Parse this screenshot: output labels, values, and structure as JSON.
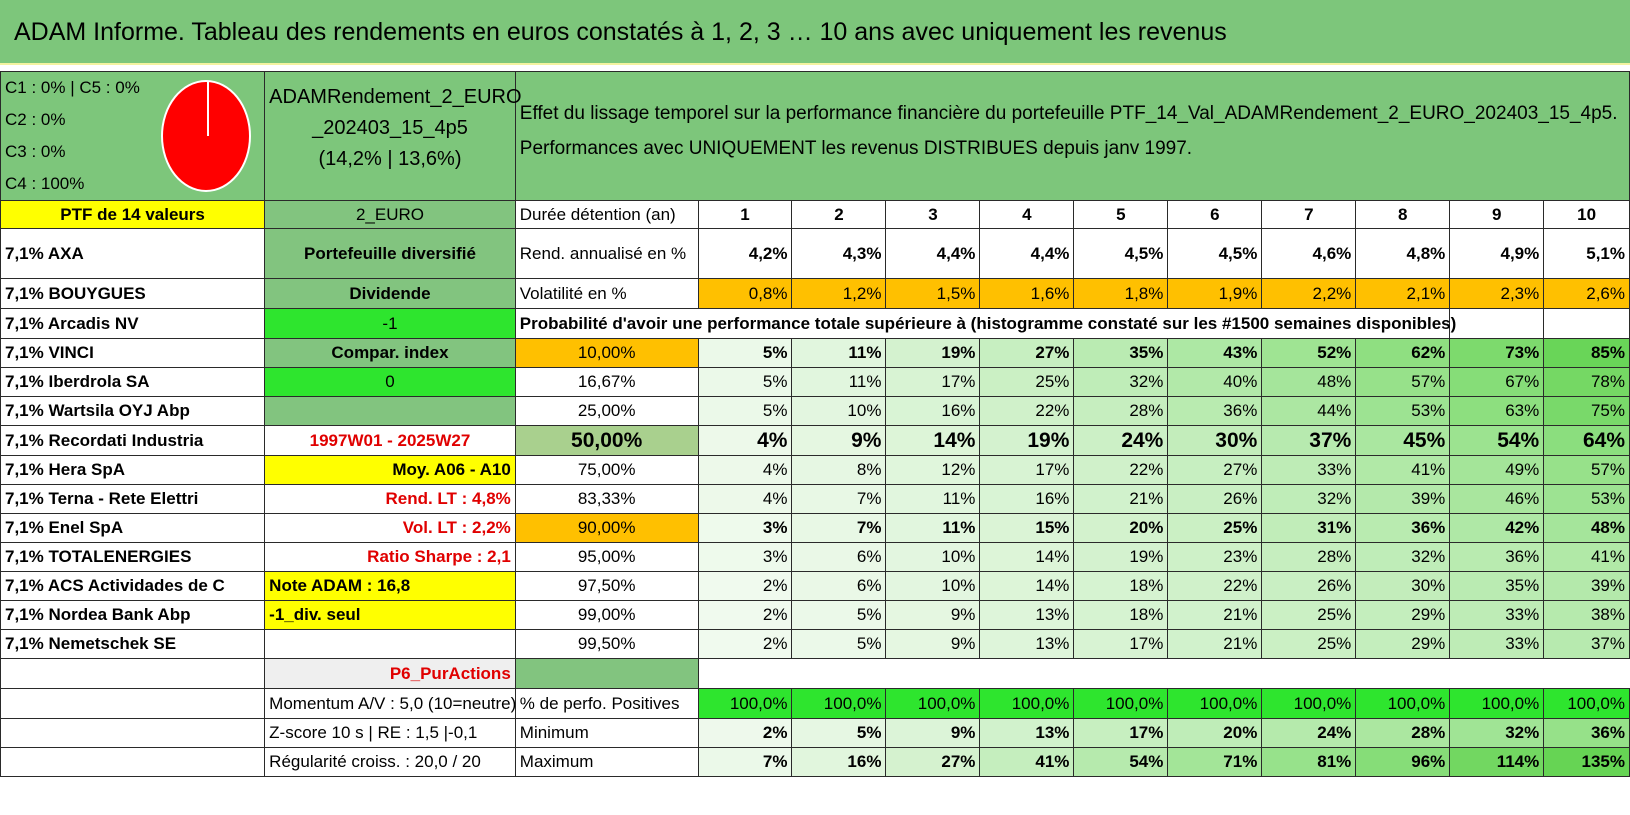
{
  "title": "ADAM Informe. Tableau des rendements en euros constatés à 1, 2, 3 … 10 ans avec uniquement les revenus",
  "shares": [
    "C1 : 0% | C5 : 0%",
    "C2 : 0%",
    "C3 : 0%",
    "C4 : 100%"
  ],
  "portfolio": {
    "name_line1": "ADAMRendement_2_EURO",
    "name_line2": "_202403_15_4p5",
    "name_line3": "(14,2% | 13,6%)",
    "code": "2_EURO",
    "count_label": "PTF de 14 valeurs"
  },
  "description": {
    "line1": "Effet du lissage temporel sur la performance financière du portefeuille PTF_14_Val_ADAMRendement_2_EURO_202403_15_4p5.",
    "line2": "Performances avec UNIQUEMENT les revenus DISTRIBUES depuis janv 1997."
  },
  "years": {
    "label": "Durée détention (an)",
    "values": [
      "1",
      "2",
      "3",
      "4",
      "5",
      "6",
      "7",
      "8",
      "9",
      "10"
    ]
  },
  "rend": {
    "label": "Rend. annualisé en %",
    "values": [
      "4,2%",
      "4,3%",
      "4,4%",
      "4,4%",
      "4,5%",
      "4,5%",
      "4,6%",
      "4,8%",
      "4,9%",
      "5,1%"
    ]
  },
  "vol": {
    "label": "Volatilité en %",
    "values": [
      "0,8%",
      "1,2%",
      "1,5%",
      "1,6%",
      "1,8%",
      "1,9%",
      "2,2%",
      "2,1%",
      "2,3%",
      "2,6%"
    ]
  },
  "prob_header": "Probabilité d'avoir une performance totale supérieure à (histogramme constaté sur les #1500 semaines disponibles)",
  "holdings": [
    "7,1% AXA",
    "7,1% BOUYGUES",
    "7,1% Arcadis NV",
    "7,1% VINCI",
    "7,1% Iberdrola SA",
    "7,1% Wartsila OYJ Abp",
    "7,1% Recordati Industria",
    "7,1% Hera SpA",
    "7,1% Terna - Rete Elettri",
    "7,1% Enel SpA",
    "7,1% TOTALENERGIES",
    "7,1% ACS Actividades de C",
    "7,1% Nordea Bank Abp",
    "7,1% Nemetschek SE"
  ],
  "info": {
    "diversified": "Portefeuille diversifié",
    "dividend": "Dividende",
    "minus_one": "-1",
    "compar_index": "Compar. index",
    "zero": "0",
    "period": "1997W01 - 2025W27",
    "moy": "Moy. A06 - A10",
    "rend_lt": "Rend. LT : 4,8%",
    "vol_lt": "Vol. LT : 2,2%",
    "sharpe": "Ratio Sharpe : 2,1",
    "note": "Note ADAM : 16,8",
    "div_seul": "-1_div. seul",
    "p6": "P6_PurActions"
  },
  "prob_rows": [
    {
      "threshold": "10,00%",
      "values": [
        "5%",
        "11%",
        "19%",
        "27%",
        "35%",
        "43%",
        "52%",
        "62%",
        "73%",
        "85%"
      ]
    },
    {
      "threshold": "16,67%",
      "values": [
        "5%",
        "11%",
        "17%",
        "25%",
        "32%",
        "40%",
        "48%",
        "57%",
        "67%",
        "78%"
      ]
    },
    {
      "threshold": "25,00%",
      "values": [
        "5%",
        "10%",
        "16%",
        "22%",
        "28%",
        "36%",
        "44%",
        "53%",
        "63%",
        "75%"
      ]
    },
    {
      "threshold": "50,00%",
      "values": [
        "4%",
        "9%",
        "14%",
        "19%",
        "24%",
        "30%",
        "37%",
        "45%",
        "54%",
        "64%"
      ]
    },
    {
      "threshold": "75,00%",
      "values": [
        "4%",
        "8%",
        "12%",
        "17%",
        "22%",
        "27%",
        "33%",
        "41%",
        "49%",
        "57%"
      ]
    },
    {
      "threshold": "83,33%",
      "values": [
        "4%",
        "7%",
        "11%",
        "16%",
        "21%",
        "26%",
        "32%",
        "39%",
        "46%",
        "53%"
      ]
    },
    {
      "threshold": "90,00%",
      "values": [
        "3%",
        "7%",
        "11%",
        "15%",
        "20%",
        "25%",
        "31%",
        "36%",
        "42%",
        "48%"
      ]
    },
    {
      "threshold": "95,00%",
      "values": [
        "3%",
        "6%",
        "10%",
        "14%",
        "19%",
        "23%",
        "28%",
        "32%",
        "36%",
        "41%"
      ]
    },
    {
      "threshold": "97,50%",
      "values": [
        "2%",
        "6%",
        "10%",
        "14%",
        "18%",
        "22%",
        "26%",
        "30%",
        "35%",
        "39%"
      ]
    },
    {
      "threshold": "99,00%",
      "values": [
        "2%",
        "5%",
        "9%",
        "13%",
        "18%",
        "21%",
        "25%",
        "29%",
        "33%",
        "38%"
      ]
    },
    {
      "threshold": "99,50%",
      "values": [
        "2%",
        "5%",
        "9%",
        "13%",
        "17%",
        "21%",
        "25%",
        "29%",
        "33%",
        "37%"
      ]
    }
  ],
  "stats": {
    "momentum": "Momentum A/V : 5,0 (10=neutre)",
    "zscore": "Z-score 10 s | RE : 1,5 |-0,1",
    "regularite": "Régularité croiss. : 20,0 / 20",
    "positives": {
      "label": "% de perfo. Positives",
      "values": [
        "100,0%",
        "100,0%",
        "100,0%",
        "100,0%",
        "100,0%",
        "100,0%",
        "100,0%",
        "100,0%",
        "100,0%",
        "100,0%"
      ]
    },
    "minimum": {
      "label": "Minimum",
      "values": [
        "2%",
        "5%",
        "9%",
        "13%",
        "17%",
        "20%",
        "24%",
        "28%",
        "32%",
        "36%"
      ]
    },
    "maximum": {
      "label": "Maximum",
      "values": [
        "7%",
        "16%",
        "27%",
        "41%",
        "54%",
        "71%",
        "81%",
        "96%",
        "114%",
        "135%"
      ]
    }
  },
  "colors": {
    "header_green": "#7dc67b",
    "bright_green": "#2ee52e",
    "yellow": "#ffff00",
    "orange": "#ffc000",
    "red_text": "#e00000",
    "pie": "#ff0000"
  }
}
